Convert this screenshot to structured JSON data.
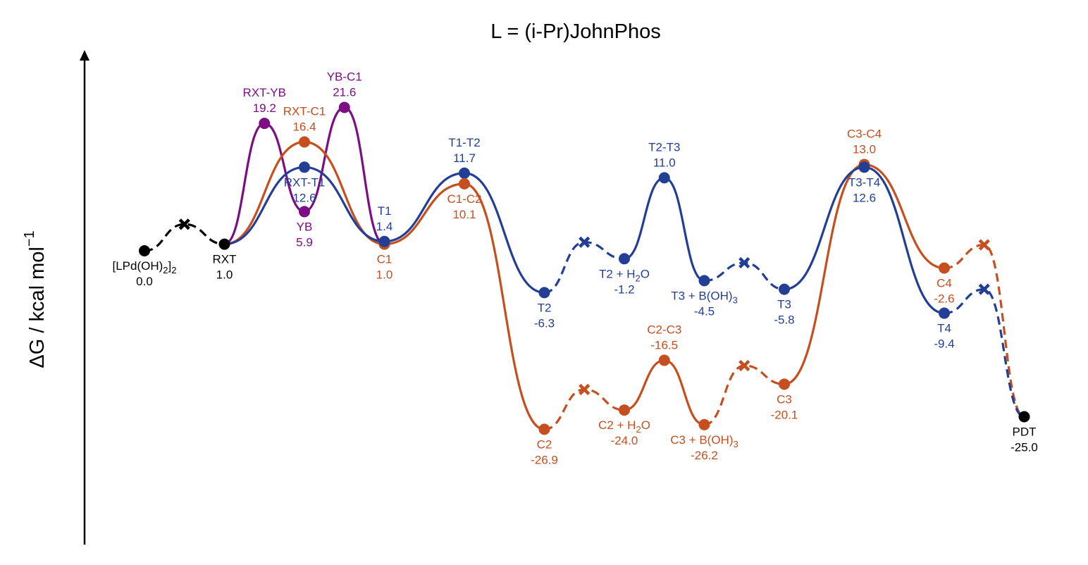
{
  "chart_data": {
    "type": "line",
    "title": "L = (i-Pr)JohnPhos",
    "ylabel": "ΔG / kcal mol",
    "ylabel_sup": "−1",
    "ylim": [
      -38,
      35
    ],
    "grid": false,
    "colors": {
      "black": "#000000",
      "orange": "#c64f1f",
      "blue": "#223f95",
      "purple": "#7c0d84"
    },
    "points": [
      {
        "id": "lpd",
        "x": 0,
        "y": 0.0,
        "color": "black",
        "marker": "o",
        "name": "[LPd(OH)2]2",
        "name_main": "[LPd(OH)",
        "sub1": "2",
        "name_mid": "]",
        "sub2": "2",
        "value": "0.0",
        "pos": "below"
      },
      {
        "id": "rxt",
        "x": 1,
        "y": 1.0,
        "color": "black",
        "marker": "o",
        "name": "RXT",
        "value": "1.0",
        "pos": "below"
      },
      {
        "id": "rxtyb",
        "x": 1.5,
        "y": 19.2,
        "color": "purple",
        "marker": "o",
        "name": "RXT-YB",
        "value": "19.2",
        "pos": "above"
      },
      {
        "id": "yb",
        "x": 2,
        "y": 5.9,
        "color": "purple",
        "marker": "o",
        "name": "YB",
        "value": "5.9",
        "pos": "below"
      },
      {
        "id": "ybc1",
        "x": 2.5,
        "y": 21.6,
        "color": "purple",
        "marker": "o",
        "name": "YB-C1",
        "value": "21.6",
        "pos": "above"
      },
      {
        "id": "rxtc1",
        "x": 2,
        "y": 16.4,
        "color": "orange",
        "marker": "o",
        "name": "RXT-C1",
        "value": "16.4",
        "pos": "above"
      },
      {
        "id": "rxtt1",
        "x": 2,
        "y": 12.6,
        "color": "blue",
        "marker": "o",
        "name": "RXT-T1",
        "value": "12.6",
        "pos": "below"
      },
      {
        "id": "c1",
        "x": 3,
        "y": 1.0,
        "color": "orange",
        "marker": "o",
        "name": "C1",
        "value": "1.0",
        "pos": "below"
      },
      {
        "id": "t1",
        "x": 3,
        "y": 1.4,
        "color": "blue",
        "marker": "o",
        "name": "T1",
        "value": "1.4",
        "pos": "above"
      },
      {
        "id": "t1t2",
        "x": 4,
        "y": 11.7,
        "color": "blue",
        "marker": "o",
        "name": "T1-T2",
        "value": "11.7",
        "pos": "above"
      },
      {
        "id": "c1c2",
        "x": 4,
        "y": 10.1,
        "color": "orange",
        "marker": "o",
        "name": "C1-C2",
        "value": "10.1",
        "pos": "below"
      },
      {
        "id": "t2",
        "x": 5,
        "y": -6.3,
        "color": "blue",
        "marker": "o",
        "name": "T2",
        "value": "-6.3",
        "pos": "below"
      },
      {
        "id": "c2",
        "x": 5,
        "y": -26.9,
        "color": "orange",
        "marker": "o",
        "name": "C2",
        "value": "-26.9",
        "pos": "below"
      },
      {
        "id": "t2h2o",
        "x": 6,
        "y": -1.2,
        "color": "blue",
        "marker": "o",
        "name": "T2 + H2O",
        "name_main": "T2 + H",
        "sub1": "2",
        "name_mid": "O",
        "value": "-1.2",
        "pos": "below"
      },
      {
        "id": "c2h2o",
        "x": 6,
        "y": -24.0,
        "color": "orange",
        "marker": "o",
        "name": "C2 + H2O",
        "name_main": "C2 + H",
        "sub1": "2",
        "name_mid": "O",
        "value": "-24.0",
        "pos": "below"
      },
      {
        "id": "t2t3",
        "x": 6.5,
        "y": 11.0,
        "color": "blue",
        "marker": "o",
        "name": "T2-T3",
        "value": "11.0",
        "pos": "above"
      },
      {
        "id": "c2c3",
        "x": 6.5,
        "y": -16.5,
        "color": "orange",
        "marker": "o",
        "name": "C2-C3",
        "value": "-16.5",
        "pos": "above"
      },
      {
        "id": "t3boh",
        "x": 7,
        "y": -4.5,
        "color": "blue",
        "marker": "o",
        "name": "T3 + B(OH)3",
        "name_main": "T3 + B(OH)",
        "sub1": "3",
        "value": "-4.5",
        "pos": "below"
      },
      {
        "id": "c3boh",
        "x": 7,
        "y": -26.2,
        "color": "orange",
        "marker": "o",
        "name": "C3 + B(OH)3",
        "name_main": "C3 + B(OH)",
        "sub1": "3",
        "value": "-26.2",
        "pos": "below"
      },
      {
        "id": "t3",
        "x": 8,
        "y": -5.8,
        "color": "blue",
        "marker": "o",
        "name": "T3",
        "value": "-5.8",
        "pos": "below"
      },
      {
        "id": "c3",
        "x": 8,
        "y": -20.1,
        "color": "orange",
        "marker": "o",
        "name": "C3",
        "value": "-20.1",
        "pos": "below"
      },
      {
        "id": "c3c4",
        "x": 9,
        "y": 13.0,
        "color": "orange",
        "marker": "o",
        "name": "C3-C4",
        "value": "13.0",
        "pos": "above"
      },
      {
        "id": "t3t4",
        "x": 9,
        "y": 12.6,
        "color": "blue",
        "marker": "o",
        "name": "T3-T4",
        "value": "12.6",
        "pos": "below"
      },
      {
        "id": "c4",
        "x": 10,
        "y": -2.6,
        "color": "orange",
        "marker": "o",
        "name": "C4",
        "value": "-2.6",
        "pos": "below"
      },
      {
        "id": "t4",
        "x": 10,
        "y": -9.4,
        "color": "blue",
        "marker": "o",
        "name": "T4",
        "value": "-9.4",
        "pos": "below"
      },
      {
        "id": "pdt",
        "x": 11,
        "y": -25.0,
        "color": "black",
        "marker": "o",
        "name": "PDT",
        "value": "-25.0",
        "pos": "below"
      },
      {
        "id": "xk1",
        "x": 0.5,
        "y": 4.0,
        "color": "black",
        "marker": "x"
      },
      {
        "id": "xt2",
        "x": 5.5,
        "y": 1.3,
        "color": "blue",
        "marker": "x"
      },
      {
        "id": "xc2",
        "x": 5.5,
        "y": -20.9,
        "color": "orange",
        "marker": "x"
      },
      {
        "id": "xt3",
        "x": 7.5,
        "y": -1.8,
        "color": "blue",
        "marker": "x"
      },
      {
        "id": "xc3",
        "x": 7.5,
        "y": -17.3,
        "color": "orange",
        "marker": "x"
      },
      {
        "id": "xc4",
        "x": 10.5,
        "y": 0.9,
        "color": "orange",
        "marker": "x"
      },
      {
        "id": "xt4",
        "x": 10.5,
        "y": -5.8,
        "color": "blue",
        "marker": "x"
      }
    ],
    "paths": [
      {
        "color": "black",
        "dash": true,
        "pts": [
          "lpd",
          "xk1",
          "rxt"
        ]
      },
      {
        "color": "purple",
        "dash": false,
        "pts": [
          "rxt",
          "rxtyb",
          "yb",
          "ybc1",
          "c1"
        ]
      },
      {
        "color": "orange",
        "dash": false,
        "pts": [
          "rxt",
          "rxtc1",
          "c1",
          "c1c2",
          "c2"
        ]
      },
      {
        "color": "blue",
        "dash": false,
        "pts": [
          "rxt",
          "rxtt1",
          "t1",
          "t1t2",
          "t2"
        ]
      },
      {
        "color": "orange",
        "dash": true,
        "pts": [
          "c2",
          "xc2",
          "c2h2o"
        ]
      },
      {
        "color": "blue",
        "dash": true,
        "pts": [
          "t2",
          "xt2",
          "t2h2o"
        ]
      },
      {
        "color": "orange",
        "dash": false,
        "pts": [
          "c2h2o",
          "c2c3",
          "c3boh"
        ]
      },
      {
        "color": "blue",
        "dash": false,
        "pts": [
          "t2h2o",
          "t2t3",
          "t3boh"
        ]
      },
      {
        "color": "orange",
        "dash": true,
        "pts": [
          "c3boh",
          "xc3",
          "c3"
        ]
      },
      {
        "color": "blue",
        "dash": true,
        "pts": [
          "t3boh",
          "xt3",
          "t3"
        ]
      },
      {
        "color": "orange",
        "dash": false,
        "pts": [
          "c3",
          "c3c4",
          "c4"
        ]
      },
      {
        "color": "blue",
        "dash": false,
        "pts": [
          "t3",
          "t3t4",
          "t4"
        ]
      },
      {
        "color": "orange",
        "dash": true,
        "pts": [
          "c4",
          "xc4",
          "pdt"
        ]
      },
      {
        "color": "blue",
        "dash": true,
        "pts": [
          "t4",
          "xt4",
          "pdt"
        ]
      }
    ]
  }
}
